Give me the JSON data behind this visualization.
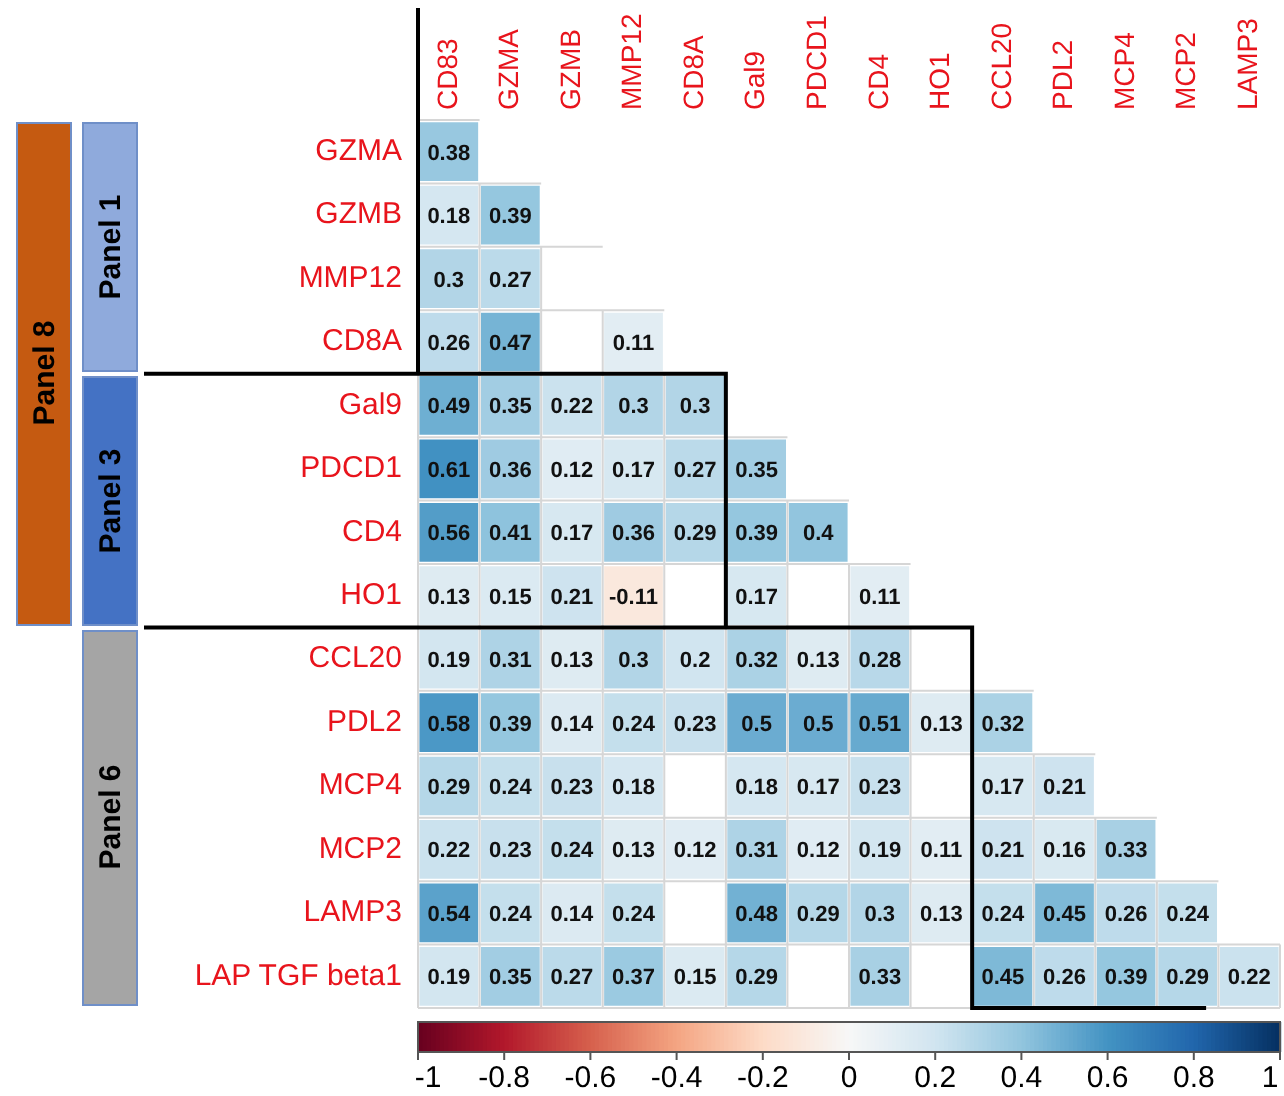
{
  "chart_data": {
    "type": "heatmap",
    "categories": [
      "CD83",
      "GZMA",
      "GZMB",
      "MMP12",
      "CD8A",
      "Gal9",
      "PDCD1",
      "CD4",
      "HO1",
      "CCL20",
      "PDL2",
      "MCP4",
      "MCP2",
      "LAMP3"
    ],
    "y_categories": [
      "GZMA",
      "GZMB",
      "MMP12",
      "CD8A",
      "Gal9",
      "PDCD1",
      "CD4",
      "HO1",
      "CCL20",
      "PDL2",
      "MCP4",
      "MCP2",
      "LAMP3",
      "LAP TGF beta1"
    ],
    "cells": [
      [
        0.38,
        null,
        null,
        null,
        null,
        null,
        null,
        null,
        null,
        null,
        null,
        null,
        null,
        null
      ],
      [
        0.18,
        0.39,
        null,
        null,
        null,
        null,
        null,
        null,
        null,
        null,
        null,
        null,
        null,
        null
      ],
      [
        0.3,
        0.27,
        null,
        null,
        null,
        null,
        null,
        null,
        null,
        null,
        null,
        null,
        null,
        null
      ],
      [
        0.26,
        0.47,
        null,
        0.11,
        null,
        null,
        null,
        null,
        null,
        null,
        null,
        null,
        null,
        null
      ],
      [
        0.49,
        0.35,
        0.22,
        0.3,
        0.3,
        null,
        null,
        null,
        null,
        null,
        null,
        null,
        null,
        null
      ],
      [
        0.61,
        0.36,
        0.12,
        0.17,
        0.27,
        0.35,
        null,
        null,
        null,
        null,
        null,
        null,
        null,
        null
      ],
      [
        0.56,
        0.41,
        0.17,
        0.36,
        0.29,
        0.39,
        0.4,
        null,
        null,
        null,
        null,
        null,
        null,
        null
      ],
      [
        0.13,
        0.15,
        0.21,
        -0.11,
        null,
        0.17,
        null,
        0.11,
        null,
        null,
        null,
        null,
        null,
        null
      ],
      [
        0.19,
        0.31,
        0.13,
        0.3,
        0.2,
        0.32,
        0.13,
        0.28,
        null,
        null,
        null,
        null,
        null,
        null
      ],
      [
        0.58,
        0.39,
        0.14,
        0.24,
        0.23,
        0.5,
        0.5,
        0.51,
        0.13,
        0.32,
        null,
        null,
        null,
        null
      ],
      [
        0.29,
        0.24,
        0.23,
        0.18,
        null,
        0.18,
        0.17,
        0.23,
        null,
        0.17,
        0.21,
        null,
        null,
        null
      ],
      [
        0.22,
        0.23,
        0.24,
        0.13,
        0.12,
        0.31,
        0.12,
        0.19,
        0.11,
        0.21,
        0.16,
        0.33,
        null,
        null
      ],
      [
        0.54,
        0.24,
        0.14,
        0.24,
        null,
        0.48,
        0.29,
        0.3,
        0.13,
        0.24,
        0.45,
        0.26,
        0.24,
        null
      ],
      [
        0.19,
        0.35,
        0.27,
        0.37,
        0.15,
        0.29,
        null,
        0.33,
        null,
        0.45,
        0.26,
        0.39,
        0.29,
        0.22
      ]
    ],
    "clim": [
      -1,
      1
    ],
    "cticks": [
      -1,
      -0.8,
      -0.6,
      -0.4,
      -0.2,
      0,
      0.2,
      0.4,
      0.6,
      0.8,
      1
    ],
    "data_labels": true,
    "legend": false,
    "grid": false,
    "annotations": [
      "Panel 8",
      "Panel 1",
      "Panel 3",
      "Panel 6"
    ]
  }
}
